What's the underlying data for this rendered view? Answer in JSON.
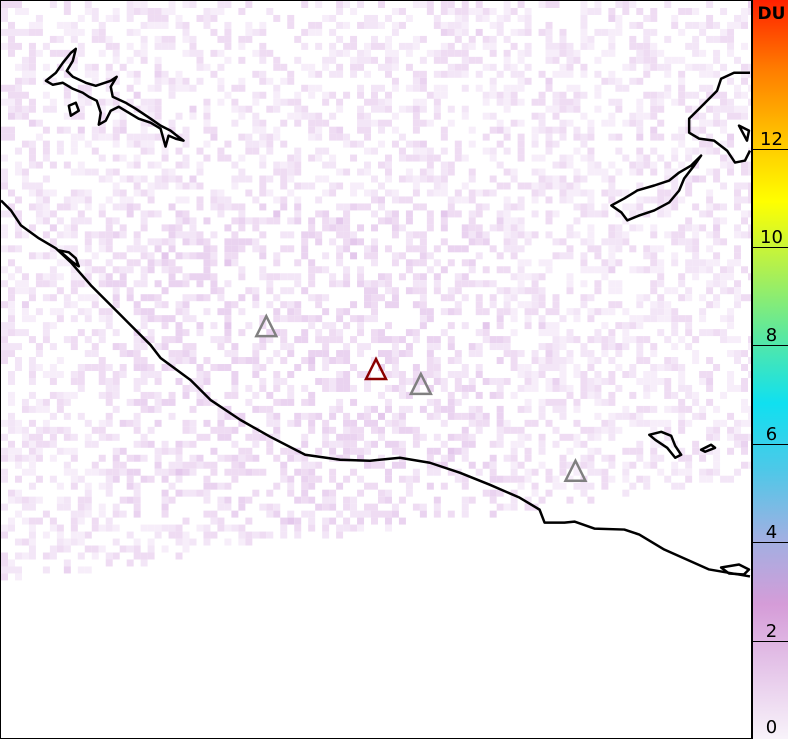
{
  "colorbar": {
    "unit": "DU",
    "ticks": [
      0,
      2,
      4,
      6,
      8,
      10,
      12
    ],
    "range": [
      0,
      15
    ],
    "colors": [
      "#f8f3fa",
      "#e6c8ea",
      "#d59cd8",
      "#9fb0e2",
      "#4ec8e8",
      "#10e0f0",
      "#5ae8a0",
      "#b0f050",
      "#ffff00",
      "#ffc000",
      "#ff7a00",
      "#ff2000"
    ]
  },
  "markers": {
    "colors": {
      "reference": "#8b0000",
      "other": "#808080"
    },
    "items": [
      {
        "type": "reference",
        "name": "reference-volcano"
      },
      {
        "type": "other",
        "name": "volcano"
      },
      {
        "type": "other",
        "name": "volcano"
      },
      {
        "type": "other",
        "name": "volcano"
      }
    ]
  }
}
